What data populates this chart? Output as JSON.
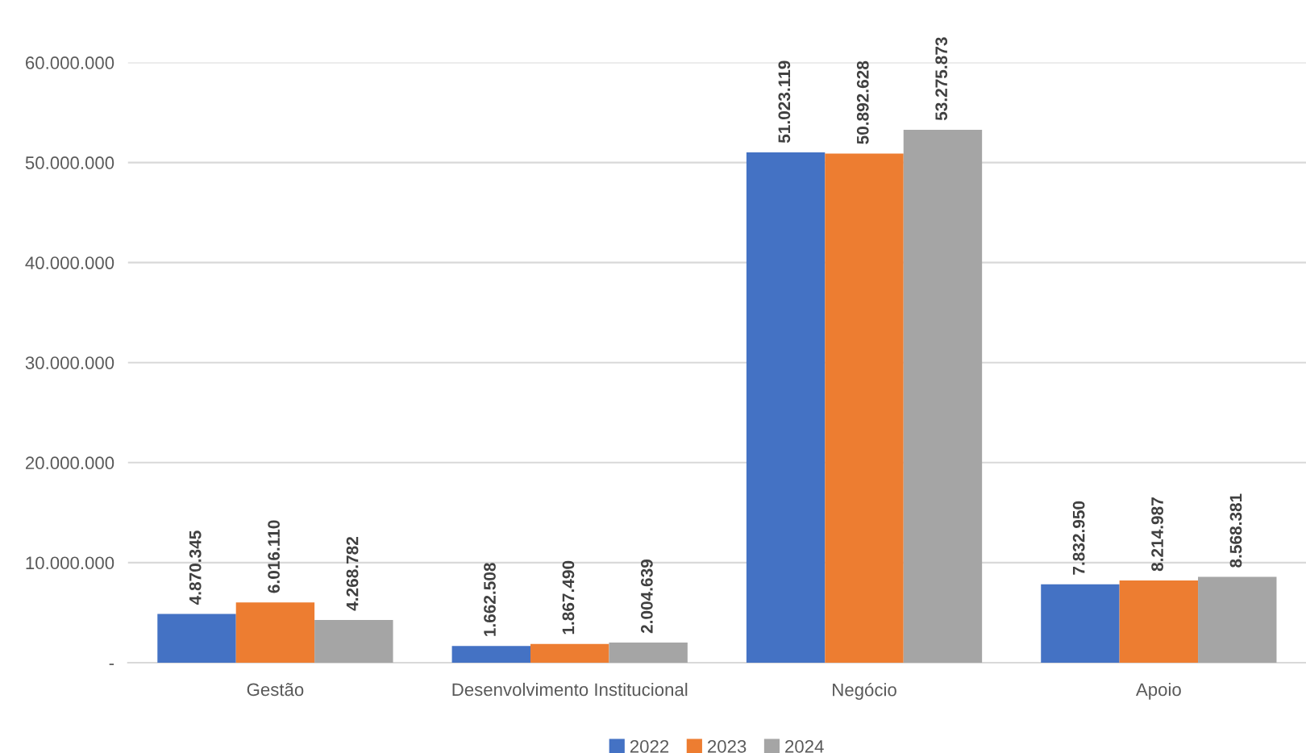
{
  "chart_data": {
    "type": "bar",
    "categories": [
      "Gestão",
      "Desenvolvimento Institucional",
      "Negócio",
      "Apoio"
    ],
    "series": [
      {
        "name": "2022",
        "color": "#4472c4",
        "values": [
          4870345,
          1662508,
          51023119,
          7832950
        ],
        "value_labels": [
          "4.870.345",
          "1.662.508",
          "51.023.119",
          "7.832.950"
        ]
      },
      {
        "name": "2023",
        "color": "#ed7d31",
        "values": [
          6016110,
          1867490,
          50892628,
          8214987
        ],
        "value_labels": [
          "6.016.110",
          "1.867.490",
          "50.892.628",
          "8.214.987"
        ]
      },
      {
        "name": "2024",
        "color": "#a5a5a5",
        "values": [
          4268782,
          2004639,
          53275873,
          8568381
        ],
        "value_labels": [
          "4.268.782",
          "2.004.639",
          "53.275.873",
          "8.568.381"
        ]
      }
    ],
    "ylim": [
      0,
      60000000
    ],
    "yticks": [
      {
        "value": 0,
        "label": "-"
      },
      {
        "value": 10000000,
        "label": "10.000.000"
      },
      {
        "value": 20000000,
        "label": "20.000.000"
      },
      {
        "value": 30000000,
        "label": "30.000.000"
      },
      {
        "value": 40000000,
        "label": "40.000.000"
      },
      {
        "value": 50000000,
        "label": "50.000.000"
      },
      {
        "value": 60000000,
        "label": "60.000.000"
      }
    ],
    "grid": "y",
    "legend": "bottom"
  }
}
